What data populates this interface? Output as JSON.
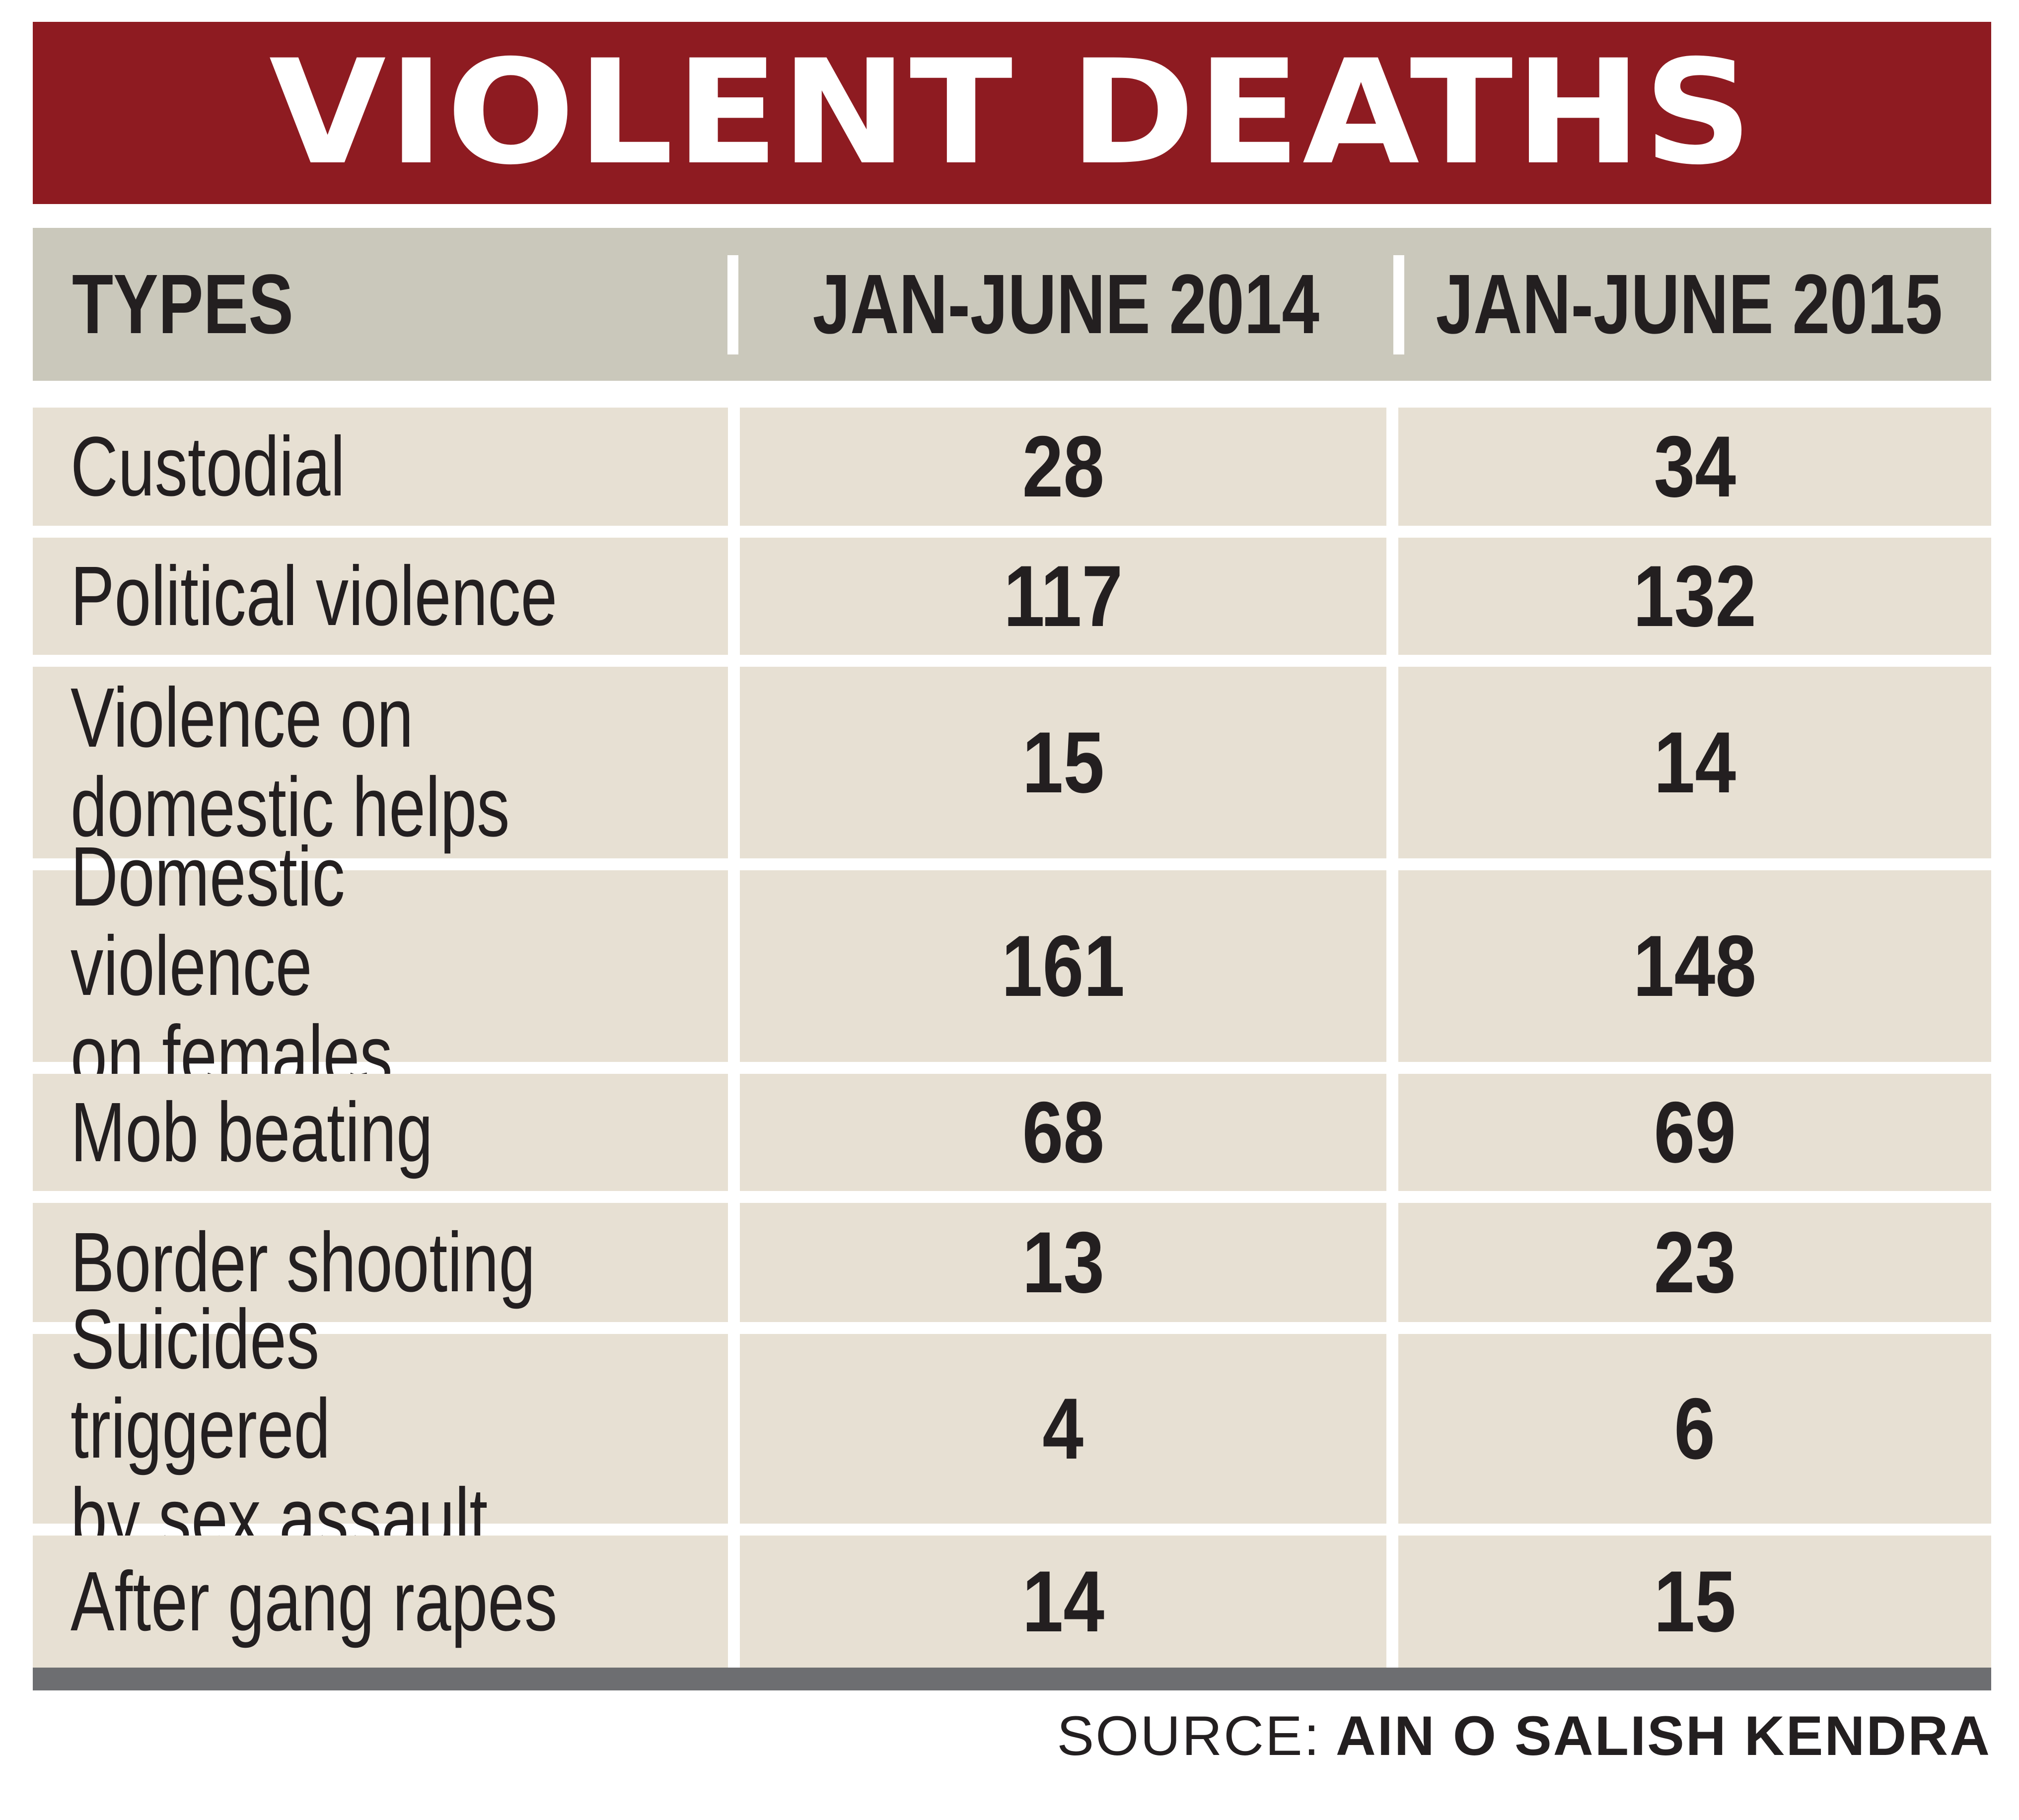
{
  "chart_data": {
    "type": "table",
    "title": "VIOLENT DEATHS",
    "columns": [
      "TYPES",
      "JAN-JUNE 2014",
      "JAN-JUNE 2015"
    ],
    "rows": [
      {
        "type": "Custodial",
        "v2014": "28",
        "v2015": "34"
      },
      {
        "type": "Political violence",
        "v2014": "117",
        "v2015": "132"
      },
      {
        "type": "Violence on\ndomestic helps",
        "v2014": "15",
        "v2015": "14"
      },
      {
        "type": "Domestic violence\non females",
        "v2014": "161",
        "v2015": "148"
      },
      {
        "type": "Mob beating",
        "v2014": "68",
        "v2015": "69"
      },
      {
        "type": "Border shooting",
        "v2014": "13",
        "v2015": "23"
      },
      {
        "type": "Suicides triggered\nby sex assault",
        "v2014": "4",
        "v2015": "6"
      },
      {
        "type": "After gang rapes",
        "v2014": "14",
        "v2015": "15"
      }
    ],
    "source_label": "SOURCE:",
    "source_name": "AIN O SALISH KENDRA"
  },
  "colors": {
    "title_background": "#8e1b21",
    "title_text": "#ffffff",
    "header_background": "#cac8bb",
    "cell_background": "#e7e0d3",
    "text": "#231f20",
    "bottom_rule": "#6d6e71"
  }
}
